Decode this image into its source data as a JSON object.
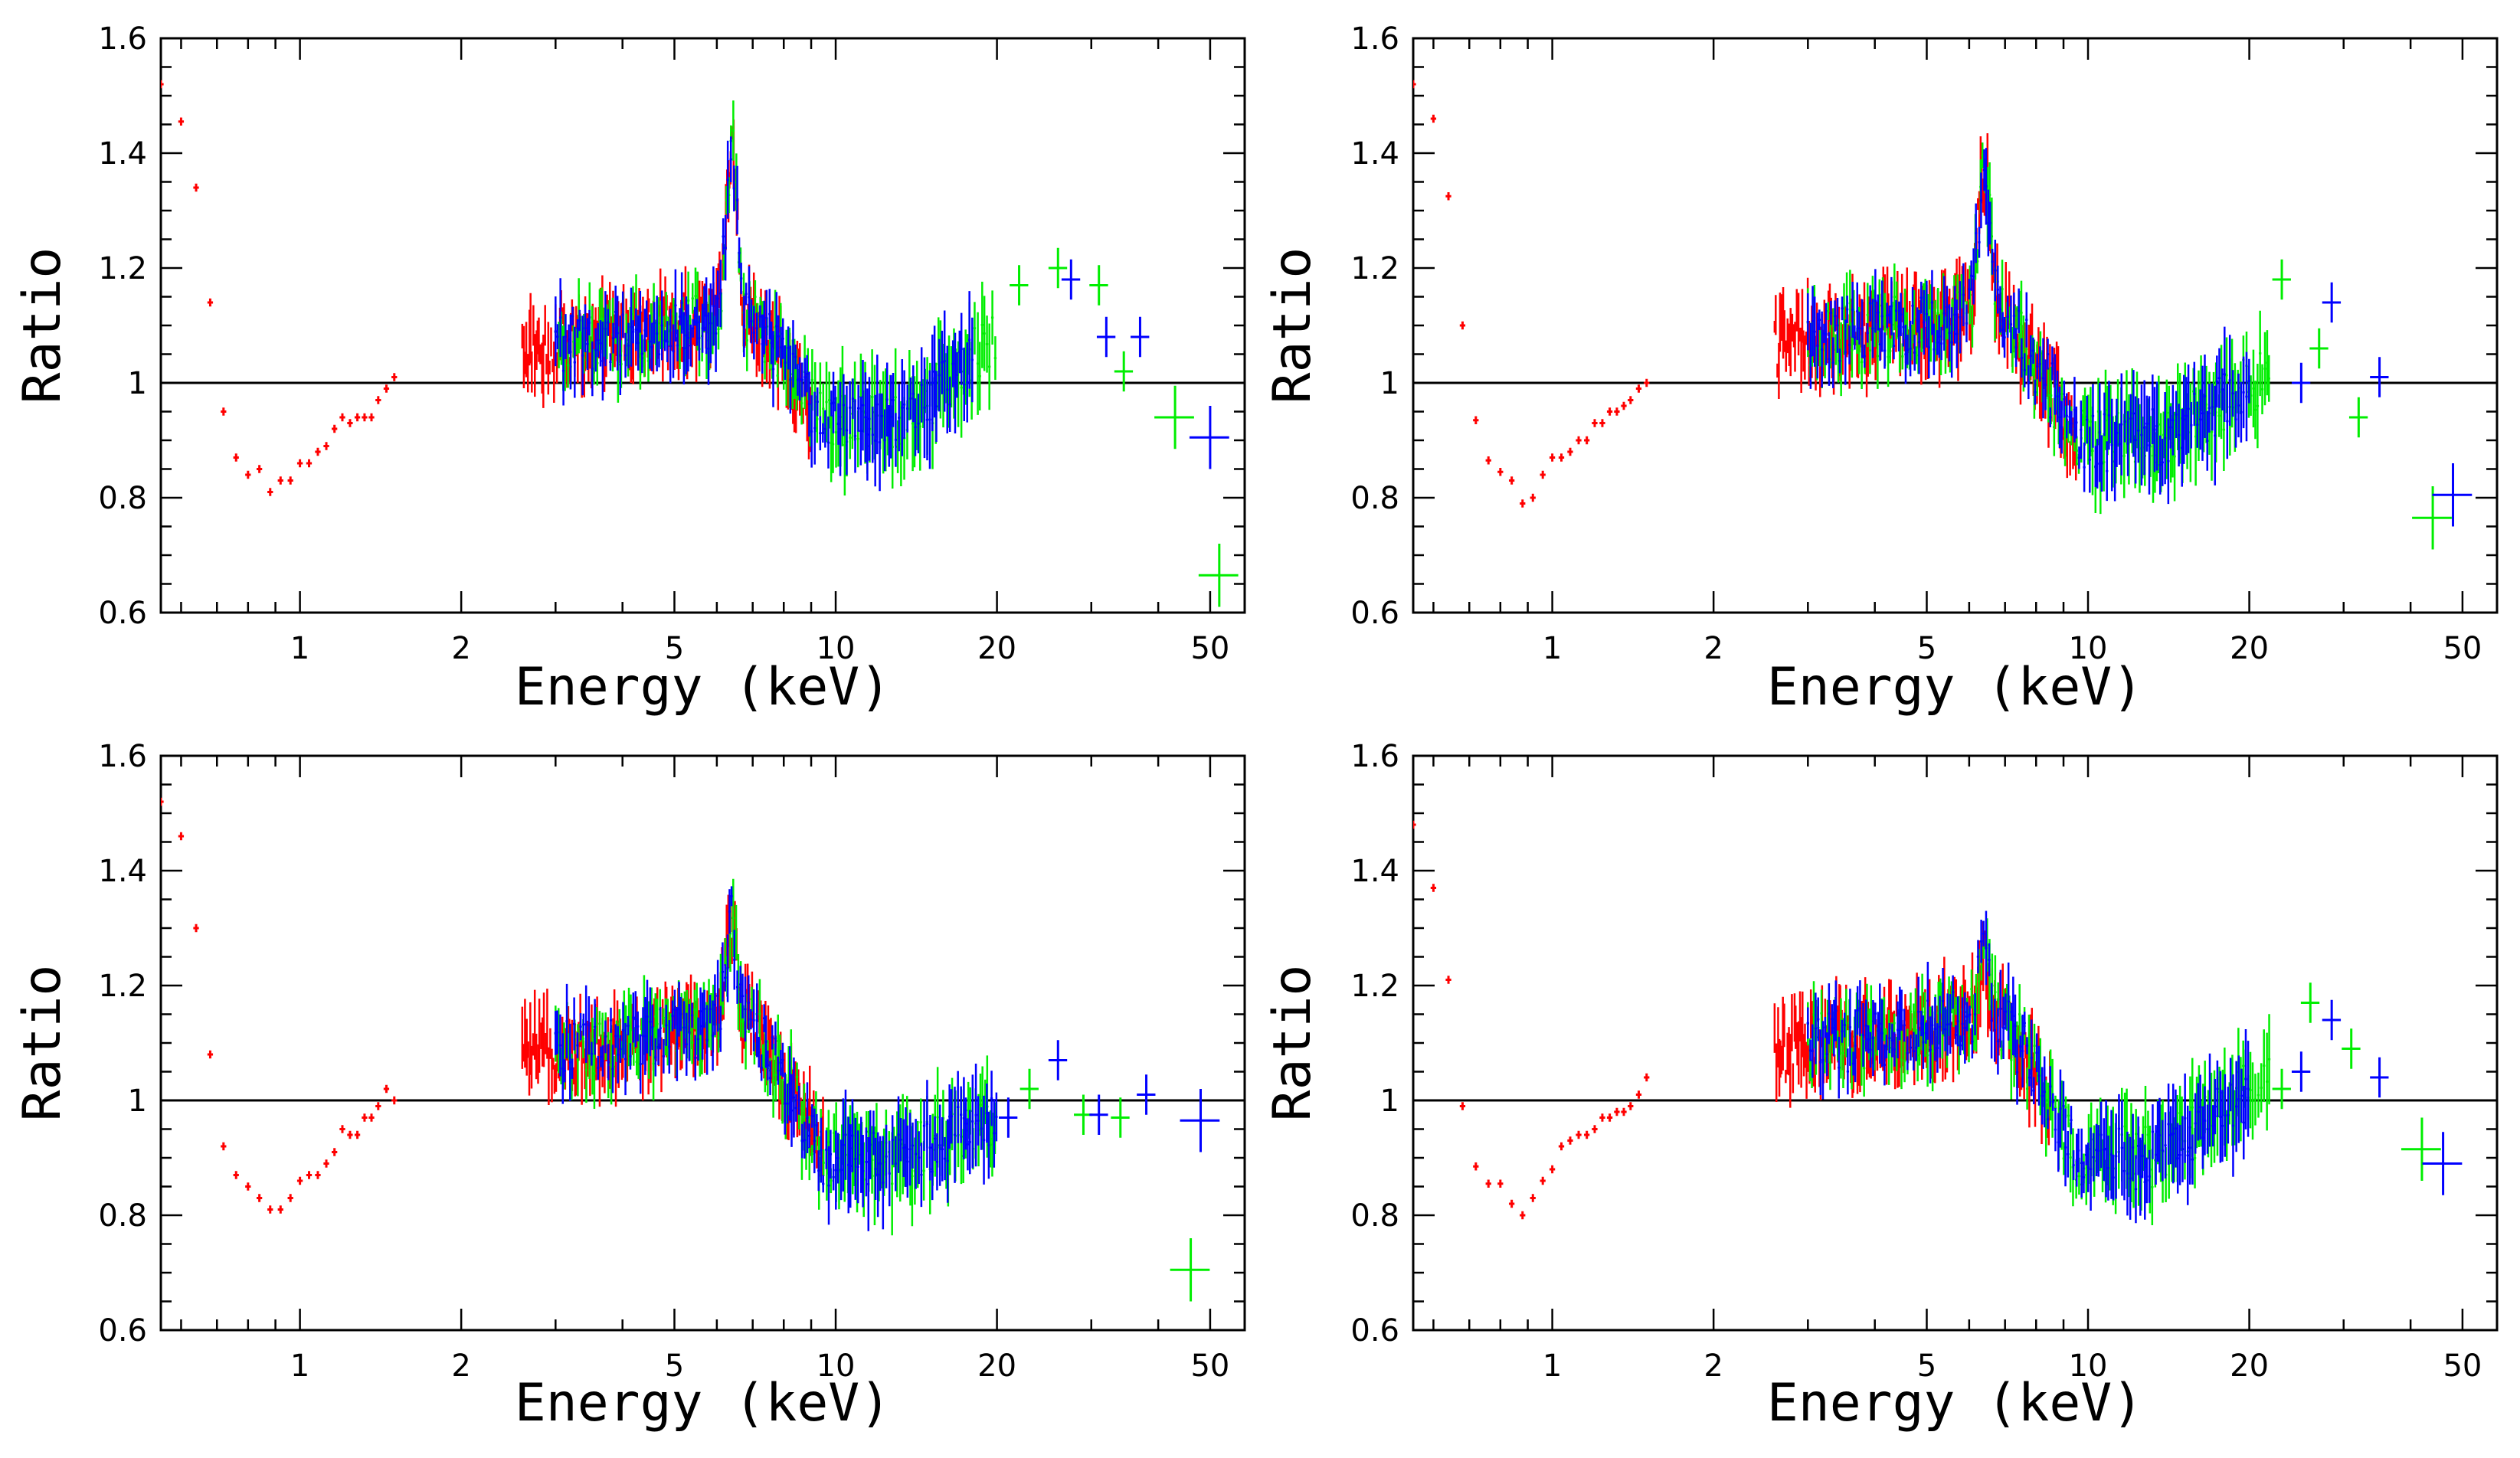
{
  "chart_data": [
    {
      "panel": "top-left",
      "type": "scatter",
      "xlabel": "Energy (keV)",
      "ylabel": "Ratio",
      "xscale": "log",
      "xlim": [
        0.55,
        58
      ],
      "ylim": [
        0.6,
        1.6
      ],
      "xticks": [
        1,
        2,
        5,
        10,
        20,
        50
      ],
      "xtick_labels": [
        "1",
        "2",
        "5",
        "10",
        "20",
        "50"
      ],
      "yticks": [
        0.6,
        0.8,
        1,
        1.2,
        1.4,
        1.6
      ],
      "ytick_labels": [
        "0.6",
        "0.8",
        "1",
        "1.2",
        "1.4",
        "1.6"
      ],
      "reference_line": 1,
      "soft_points": {
        "energy": [
          0.55,
          0.6,
          0.64,
          0.68,
          0.72,
          0.76,
          0.8,
          0.84,
          0.88,
          0.92,
          0.96,
          1.0,
          1.04,
          1.08,
          1.12,
          1.16,
          1.2,
          1.24,
          1.28,
          1.32,
          1.36,
          1.4,
          1.45,
          1.5
        ],
        "ratio": [
          1.52,
          1.455,
          1.34,
          1.14,
          0.95,
          0.87,
          0.84,
          0.85,
          0.81,
          0.83,
          0.83,
          0.86,
          0.86,
          0.88,
          0.89,
          0.92,
          0.94,
          0.93,
          0.94,
          0.94,
          0.94,
          0.97,
          0.99,
          1.01
        ]
      },
      "model": {
        "pre": 1.06,
        "line_energy": 6.4,
        "line_height": 0.3,
        "dip": 0.93,
        "hump": 1.18,
        "tail": 0.88,
        "tail_energy": 45,
        "scatter": 0.05
      },
      "series_ranges": {
        "red": [
          2.6,
          9
        ],
        "green": [
          3,
          20
        ],
        "blue": [
          3,
          18
        ]
      },
      "high_energy_points": [
        {
          "color": "green",
          "energy": 22.0,
          "ratio": 1.17
        },
        {
          "color": "green",
          "energy": 26.0,
          "ratio": 1.2
        },
        {
          "color": "blue",
          "energy": 27.5,
          "ratio": 1.18
        },
        {
          "color": "green",
          "energy": 31.0,
          "ratio": 1.17
        },
        {
          "color": "blue",
          "energy": 32.0,
          "ratio": 1.08
        },
        {
          "color": "green",
          "energy": 34.5,
          "ratio": 1.02
        },
        {
          "color": "blue",
          "energy": 37.0,
          "ratio": 1.08
        },
        {
          "color": "green",
          "energy": 43.0,
          "ratio": 0.94
        },
        {
          "color": "blue",
          "energy": 50.0,
          "ratio": 0.905
        },
        {
          "color": "green",
          "energy": 52.0,
          "ratio": 0.665
        }
      ]
    },
    {
      "panel": "top-right",
      "type": "scatter",
      "xlabel": "Energy (keV)",
      "ylabel": "Ratio",
      "xscale": "log",
      "xlim": [
        0.55,
        58
      ],
      "ylim": [
        0.6,
        1.6
      ],
      "xticks": [
        1,
        2,
        5,
        10,
        20,
        50
      ],
      "xtick_labels": [
        "1",
        "2",
        "5",
        "10",
        "20",
        "50"
      ],
      "yticks": [
        0.6,
        0.8,
        1,
        1.2,
        1.4,
        1.6
      ],
      "ytick_labels": [
        "0.6",
        "0.8",
        "1",
        "1.2",
        "1.4",
        "1.6"
      ],
      "reference_line": 1,
      "soft_points": {
        "energy": [
          0.55,
          0.6,
          0.64,
          0.68,
          0.72,
          0.76,
          0.8,
          0.84,
          0.88,
          0.92,
          0.96,
          1.0,
          1.04,
          1.08,
          1.12,
          1.16,
          1.2,
          1.24,
          1.28,
          1.32,
          1.36,
          1.4,
          1.45,
          1.5
        ],
        "ratio": [
          1.52,
          1.46,
          1.325,
          1.1,
          0.935,
          0.865,
          0.845,
          0.83,
          0.79,
          0.8,
          0.84,
          0.87,
          0.87,
          0.88,
          0.9,
          0.9,
          0.93,
          0.93,
          0.95,
          0.95,
          0.96,
          0.97,
          0.99,
          1.0
        ]
      },
      "model": {
        "pre": 1.07,
        "line_energy": 6.4,
        "line_height": 0.25,
        "dip": 0.9,
        "hump": 1.05,
        "tail": 0.8,
        "tail_energy": 45,
        "scatter": 0.055
      },
      "series_ranges": {
        "red": [
          2.6,
          9.5
        ],
        "green": [
          3,
          22
        ],
        "blue": [
          3,
          20
        ]
      },
      "high_energy_points": [
        {
          "color": "green",
          "energy": 23.0,
          "ratio": 1.18
        },
        {
          "color": "blue",
          "energy": 25.0,
          "ratio": 1.0
        },
        {
          "color": "green",
          "energy": 27.0,
          "ratio": 1.06
        },
        {
          "color": "blue",
          "energy": 28.5,
          "ratio": 1.14
        },
        {
          "color": "green",
          "energy": 32.0,
          "ratio": 0.94
        },
        {
          "color": "blue",
          "energy": 35.0,
          "ratio": 1.01
        },
        {
          "color": "green",
          "energy": 44.0,
          "ratio": 0.765
        },
        {
          "color": "blue",
          "energy": 48.0,
          "ratio": 0.805
        }
      ]
    },
    {
      "panel": "bottom-left",
      "type": "scatter",
      "xlabel": "Energy (keV)",
      "ylabel": "Ratio",
      "xscale": "log",
      "xlim": [
        0.55,
        58
      ],
      "ylim": [
        0.6,
        1.6
      ],
      "xticks": [
        1,
        2,
        5,
        10,
        20,
        50
      ],
      "xtick_labels": [
        "1",
        "2",
        "5",
        "10",
        "20",
        "50"
      ],
      "yticks": [
        0.6,
        0.8,
        1,
        1.2,
        1.4,
        1.6
      ],
      "ytick_labels": [
        "0.6",
        "0.8",
        "1",
        "1.2",
        "1.4",
        "1.6"
      ],
      "reference_line": 1,
      "soft_points": {
        "energy": [
          0.55,
          0.6,
          0.64,
          0.68,
          0.72,
          0.76,
          0.8,
          0.84,
          0.88,
          0.92,
          0.96,
          1.0,
          1.04,
          1.08,
          1.12,
          1.16,
          1.2,
          1.24,
          1.28,
          1.32,
          1.36,
          1.4,
          1.45,
          1.5
        ],
        "ratio": [
          1.52,
          1.46,
          1.3,
          1.08,
          0.92,
          0.87,
          0.85,
          0.83,
          0.81,
          0.81,
          0.83,
          0.86,
          0.87,
          0.87,
          0.89,
          0.91,
          0.95,
          0.94,
          0.94,
          0.97,
          0.97,
          0.99,
          1.02,
          1.0
        ]
      },
      "model": {
        "pre": 1.08,
        "line_energy": 6.4,
        "line_height": 0.18,
        "dip": 0.9,
        "hump": 1.02,
        "tail": 0.95,
        "tail_energy": 45,
        "scatter": 0.05
      },
      "series_ranges": {
        "red": [
          2.6,
          9.5
        ],
        "green": [
          3,
          20
        ],
        "blue": [
          3,
          20
        ]
      },
      "high_energy_points": [
        {
          "color": "blue",
          "energy": 21.0,
          "ratio": 0.97
        },
        {
          "color": "green",
          "energy": 23.0,
          "ratio": 1.02
        },
        {
          "color": "blue",
          "energy": 26.0,
          "ratio": 1.07
        },
        {
          "color": "green",
          "energy": 29.0,
          "ratio": 0.975
        },
        {
          "color": "blue",
          "energy": 31.0,
          "ratio": 0.975
        },
        {
          "color": "green",
          "energy": 34.0,
          "ratio": 0.97
        },
        {
          "color": "blue",
          "energy": 38.0,
          "ratio": 1.01
        },
        {
          "color": "blue",
          "energy": 48.0,
          "ratio": 0.965
        },
        {
          "color": "green",
          "energy": 46.0,
          "ratio": 0.705
        }
      ]
    },
    {
      "panel": "bottom-right",
      "type": "scatter",
      "xlabel": "Energy (keV)",
      "ylabel": "Ratio",
      "xscale": "log",
      "xlim": [
        0.55,
        58
      ],
      "ylim": [
        0.6,
        1.6
      ],
      "xticks": [
        1,
        2,
        5,
        10,
        20,
        50
      ],
      "xtick_labels": [
        "1",
        "2",
        "5",
        "10",
        "20",
        "50"
      ],
      "yticks": [
        0.6,
        0.8,
        1,
        1.2,
        1.4,
        1.6
      ],
      "ytick_labels": [
        "0.6",
        "0.8",
        "1",
        "1.2",
        "1.4",
        "1.6"
      ],
      "reference_line": 1,
      "soft_points": {
        "energy": [
          0.55,
          0.6,
          0.64,
          0.68,
          0.72,
          0.76,
          0.8,
          0.84,
          0.88,
          0.92,
          0.96,
          1.0,
          1.04,
          1.08,
          1.12,
          1.16,
          1.2,
          1.24,
          1.28,
          1.32,
          1.36,
          1.4,
          1.45,
          1.5
        ],
        "ratio": [
          1.48,
          1.37,
          1.21,
          0.99,
          0.885,
          0.855,
          0.855,
          0.82,
          0.8,
          0.83,
          0.86,
          0.88,
          0.92,
          0.93,
          0.94,
          0.94,
          0.95,
          0.97,
          0.97,
          0.98,
          0.98,
          0.99,
          1.01,
          1.04
        ]
      },
      "model": {
        "pre": 1.09,
        "line_energy": 6.4,
        "line_height": 0.1,
        "dip": 0.9,
        "hump": 1.08,
        "tail": 0.92,
        "tail_energy": 45,
        "scatter": 0.055
      },
      "series_ranges": {
        "red": [
          2.6,
          8.5
        ],
        "green": [
          3,
          22
        ],
        "blue": [
          3,
          20
        ]
      },
      "high_energy_points": [
        {
          "color": "green",
          "energy": 23.0,
          "ratio": 1.02
        },
        {
          "color": "blue",
          "energy": 25.0,
          "ratio": 1.05
        },
        {
          "color": "green",
          "energy": 26.0,
          "ratio": 1.17
        },
        {
          "color": "blue",
          "energy": 28.5,
          "ratio": 1.14
        },
        {
          "color": "green",
          "energy": 31.0,
          "ratio": 1.09
        },
        {
          "color": "blue",
          "energy": 35.0,
          "ratio": 1.04
        },
        {
          "color": "green",
          "energy": 42.0,
          "ratio": 0.915
        },
        {
          "color": "blue",
          "energy": 46.0,
          "ratio": 0.89
        }
      ]
    }
  ],
  "colors": {
    "red": "#ff0000",
    "green": "#00ee00",
    "blue": "#0000ff",
    "axis": "#000000"
  }
}
